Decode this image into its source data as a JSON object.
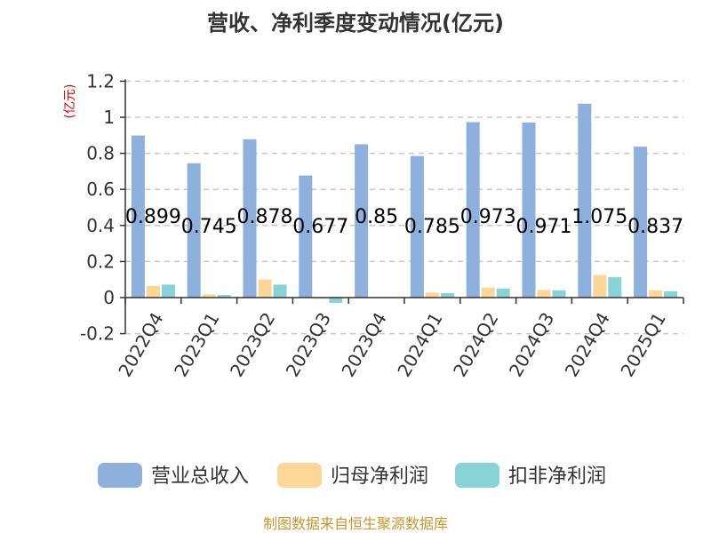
{
  "chart_data": {
    "type": "bar",
    "title": "营收、净利季度变动情况(亿元)",
    "ylabel": "(亿元)",
    "xlabel": "",
    "categories": [
      "2022Q4",
      "2023Q1",
      "2023Q2",
      "2023Q3",
      "2023Q4",
      "2024Q1",
      "2024Q2",
      "2024Q3",
      "2024Q4",
      "2025Q1"
    ],
    "series": [
      {
        "name": "营业总收入",
        "color": "#8eb0dd",
        "values": [
          0.899,
          0.745,
          0.878,
          0.677,
          0.85,
          0.785,
          0.973,
          0.971,
          1.075,
          0.837
        ],
        "data_labels": [
          "0.899",
          "0.745",
          "0.878",
          "0.677",
          "0.85",
          "0.785",
          "0.973",
          "0.971",
          "1.075",
          "0.837"
        ]
      },
      {
        "name": "归母净利润",
        "color": "#fdd797",
        "values": [
          0.065,
          0.018,
          0.1,
          -0.007,
          0.002,
          0.028,
          0.055,
          0.042,
          0.125,
          0.04
        ]
      },
      {
        "name": "扣非净利润",
        "color": "#88d3d6",
        "values": [
          0.072,
          0.015,
          0.072,
          -0.03,
          0.001,
          0.025,
          0.05,
          0.04,
          0.113,
          0.035
        ]
      }
    ],
    "ylim": [
      -0.2,
      1.2
    ],
    "yticks": [
      -0.2,
      0,
      0.2,
      0.4,
      0.6,
      0.8,
      1,
      1.2
    ],
    "ytick_labels": [
      "-0.2",
      "0",
      "0.2",
      "0.4",
      "0.6",
      "0.8",
      "1",
      "1.2"
    ],
    "grid": true,
    "legend_position": "bottom"
  },
  "source_text": "制图数据来自恒生聚源数据库"
}
